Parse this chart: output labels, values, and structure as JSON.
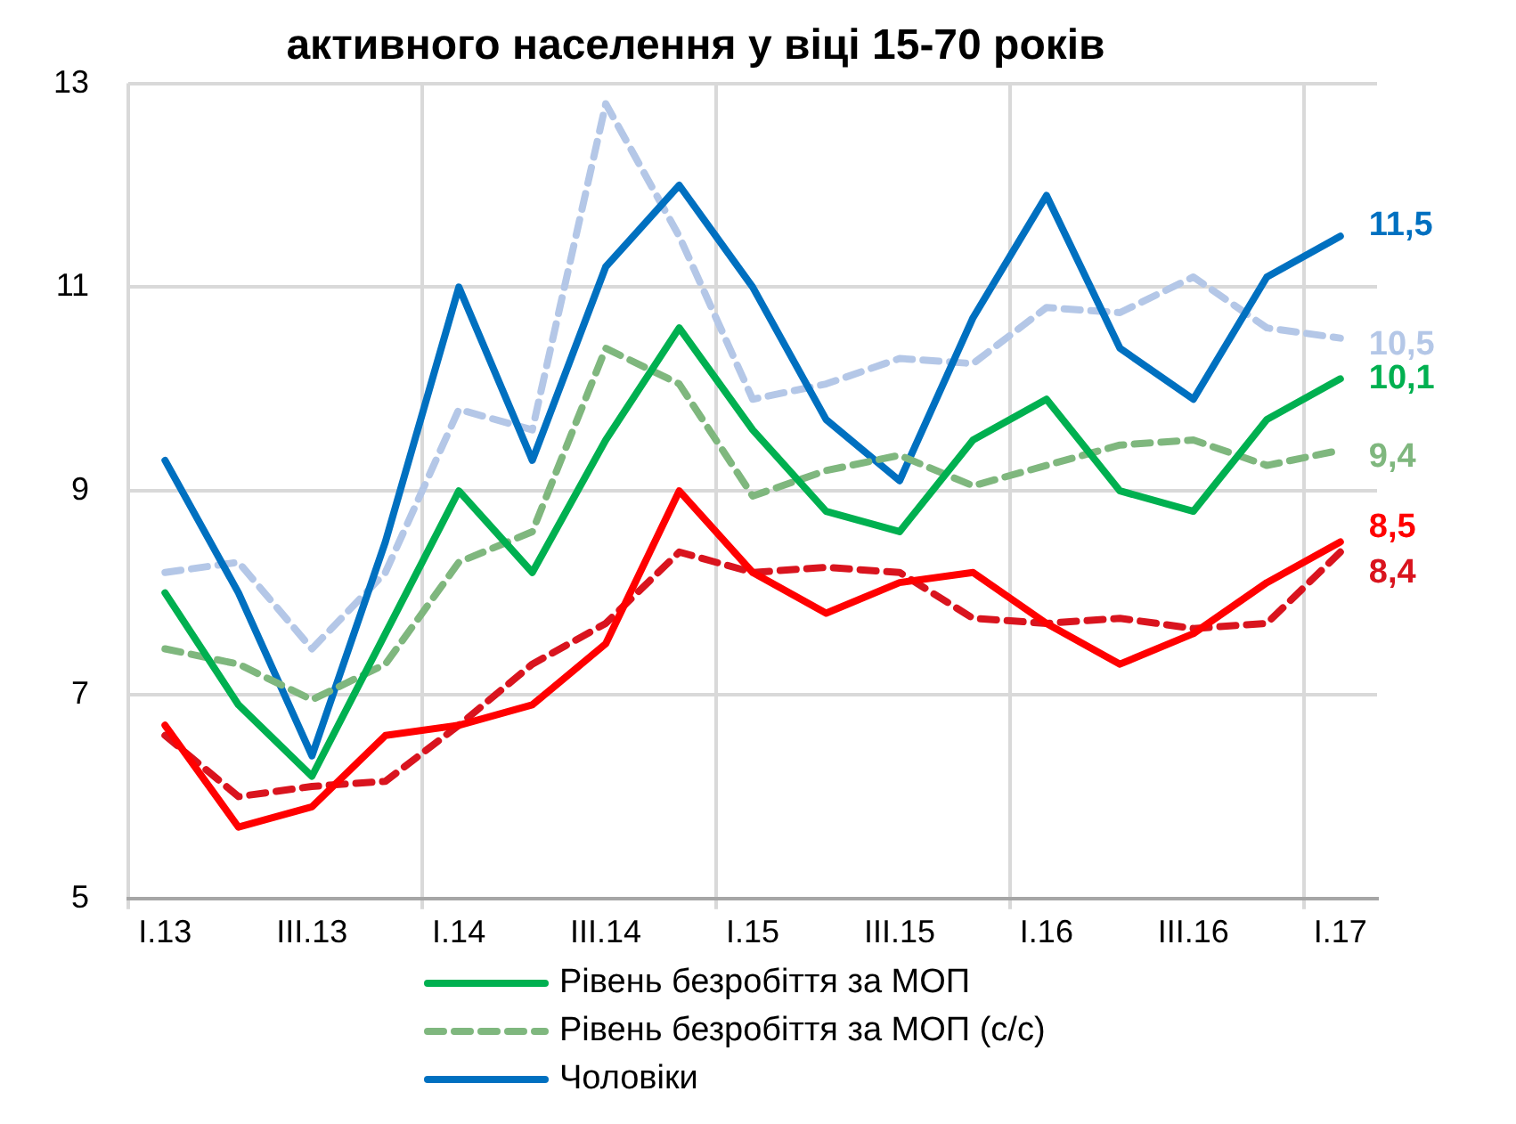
{
  "chart_data": {
    "type": "line",
    "title": "активного населення у віці 15-70 років",
    "categories": [
      "I.13",
      null,
      "III.13",
      null,
      "I.14",
      null,
      "III.14",
      null,
      "I.15",
      null,
      "III.15",
      null,
      "I.16",
      null,
      "III.16",
      null,
      "I.17"
    ],
    "ylim": [
      5,
      13
    ],
    "yticks": [
      5,
      7,
      9,
      11,
      13
    ],
    "grid": true,
    "legend": "bottom",
    "marker": "none",
    "series": [
      {
        "name": "Рівень безробіття за МОП",
        "color": "#00b050",
        "line_style": "solid",
        "values": [
          8.0,
          6.9,
          6.2,
          7.6,
          9.0,
          8.2,
          9.5,
          10.6,
          9.6,
          8.8,
          8.6,
          9.5,
          9.9,
          9.0,
          8.8,
          9.7,
          10.1
        ],
        "value_labels": [
          null,
          null,
          null,
          null,
          null,
          null,
          null,
          null,
          null,
          null,
          null,
          null,
          null,
          null,
          null,
          null,
          "10,1"
        ]
      },
      {
        "name": "Рівень безробіття за МОП (с/с)",
        "color": "#7fb77e",
        "line_style": "dashed",
        "values": [
          7.45,
          7.3,
          6.95,
          7.3,
          8.3,
          8.6,
          10.4,
          10.05,
          8.95,
          9.2,
          9.35,
          9.05,
          9.25,
          9.45,
          9.5,
          9.25,
          9.4
        ],
        "value_labels": [
          null,
          null,
          null,
          null,
          null,
          null,
          null,
          null,
          null,
          null,
          null,
          null,
          null,
          null,
          null,
          null,
          "9,4"
        ]
      },
      {
        "name": "Чоловіки",
        "color": "#0070c0",
        "line_style": "solid",
        "values": [
          9.3,
          8.0,
          6.4,
          8.5,
          11.0,
          9.3,
          11.2,
          12.0,
          11.0,
          9.7,
          9.1,
          10.7,
          11.9,
          10.4,
          9.9,
          11.1,
          11.5
        ],
        "value_labels": [
          null,
          null,
          null,
          null,
          null,
          null,
          null,
          null,
          null,
          null,
          null,
          null,
          null,
          null,
          null,
          null,
          "11,5"
        ]
      },
      {
        "color": "#b4c7e7",
        "line_style": "dashed",
        "values": [
          8.2,
          8.3,
          7.45,
          8.2,
          9.8,
          9.6,
          12.8,
          11.5,
          9.9,
          10.05,
          10.3,
          10.25,
          10.8,
          10.75,
          11.1,
          10.6,
          10.5
        ],
        "value_labels": [
          null,
          null,
          null,
          null,
          null,
          null,
          null,
          null,
          null,
          null,
          null,
          null,
          null,
          null,
          null,
          null,
          "10,5"
        ]
      },
      {
        "color": "#ff0000",
        "line_style": "solid",
        "values": [
          6.7,
          5.7,
          5.9,
          6.6,
          6.7,
          6.9,
          7.5,
          9.0,
          8.2,
          7.8,
          8.1,
          8.2,
          7.7,
          7.3,
          7.6,
          8.1,
          8.5
        ],
        "value_labels": [
          null,
          null,
          null,
          null,
          null,
          null,
          null,
          null,
          null,
          null,
          null,
          null,
          null,
          null,
          null,
          null,
          "8,5"
        ]
      },
      {
        "color": "#d9141e",
        "line_style": "dashed",
        "values": [
          6.6,
          6.0,
          6.1,
          6.15,
          6.7,
          7.3,
          7.7,
          8.4,
          8.2,
          8.25,
          8.2,
          7.75,
          7.7,
          7.75,
          7.65,
          7.7,
          8.4
        ],
        "value_labels": [
          null,
          null,
          null,
          null,
          null,
          null,
          null,
          null,
          null,
          null,
          null,
          null,
          null,
          null,
          null,
          null,
          "8,4"
        ]
      }
    ]
  }
}
